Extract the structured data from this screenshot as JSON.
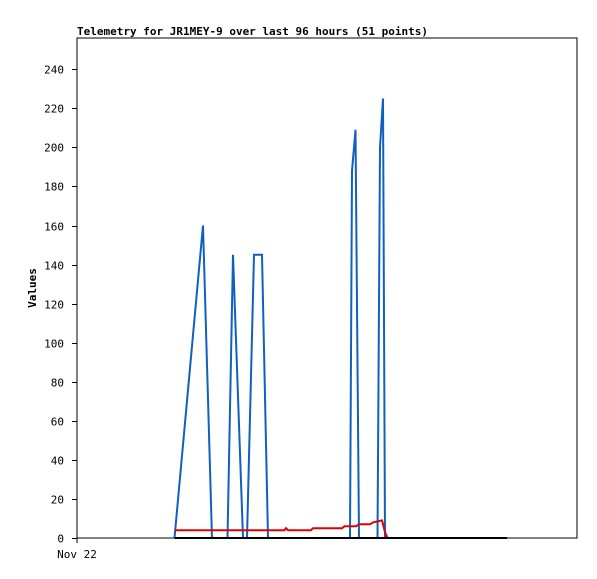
{
  "chart_data": {
    "type": "line",
    "title": "Telemetry for JR1MEY-9 over last 96 hours (51 points)",
    "xlabel": "",
    "ylabel": "Values",
    "x_tick_labels": [
      "Nov 22"
    ],
    "ylim": [
      0,
      256
    ],
    "yticks": [
      0,
      20,
      40,
      60,
      80,
      100,
      120,
      140,
      160,
      180,
      200,
      220,
      240
    ],
    "xlim": [
      0,
      100
    ],
    "grid": false,
    "legend": "none",
    "series": [
      {
        "color": "#1060c0",
        "x": [
          19.5,
          25.2,
          27.0,
          30.1,
          31.2,
          33.2,
          34.0,
          35.4,
          36.5,
          37.0,
          38.2,
          38.6,
          54.6,
          55.0,
          55.7,
          56.4,
          60.1,
          60.6,
          61.2,
          61.6
        ],
        "y": [
          0,
          160,
          0,
          0,
          145,
          0,
          0,
          145,
          145,
          145,
          0,
          0,
          0,
          188,
          209,
          0,
          0,
          200,
          225,
          0
        ]
      },
      {
        "color": "#e00000",
        "x": [
          19.5,
          32,
          41.5,
          41.8,
          42.2,
          46.8,
          47.2,
          53.0,
          53.5,
          55.8,
          56.4,
          58.6,
          59.2,
          61.0,
          61.6,
          62.1
        ],
        "y": [
          4,
          4,
          4,
          5,
          4,
          4,
          5,
          5,
          6,
          6,
          7,
          7,
          8,
          9,
          3,
          0
        ]
      },
      {
        "color": "#000000",
        "x": [
          19.5,
          86.0
        ],
        "y": [
          0,
          0
        ]
      }
    ]
  }
}
